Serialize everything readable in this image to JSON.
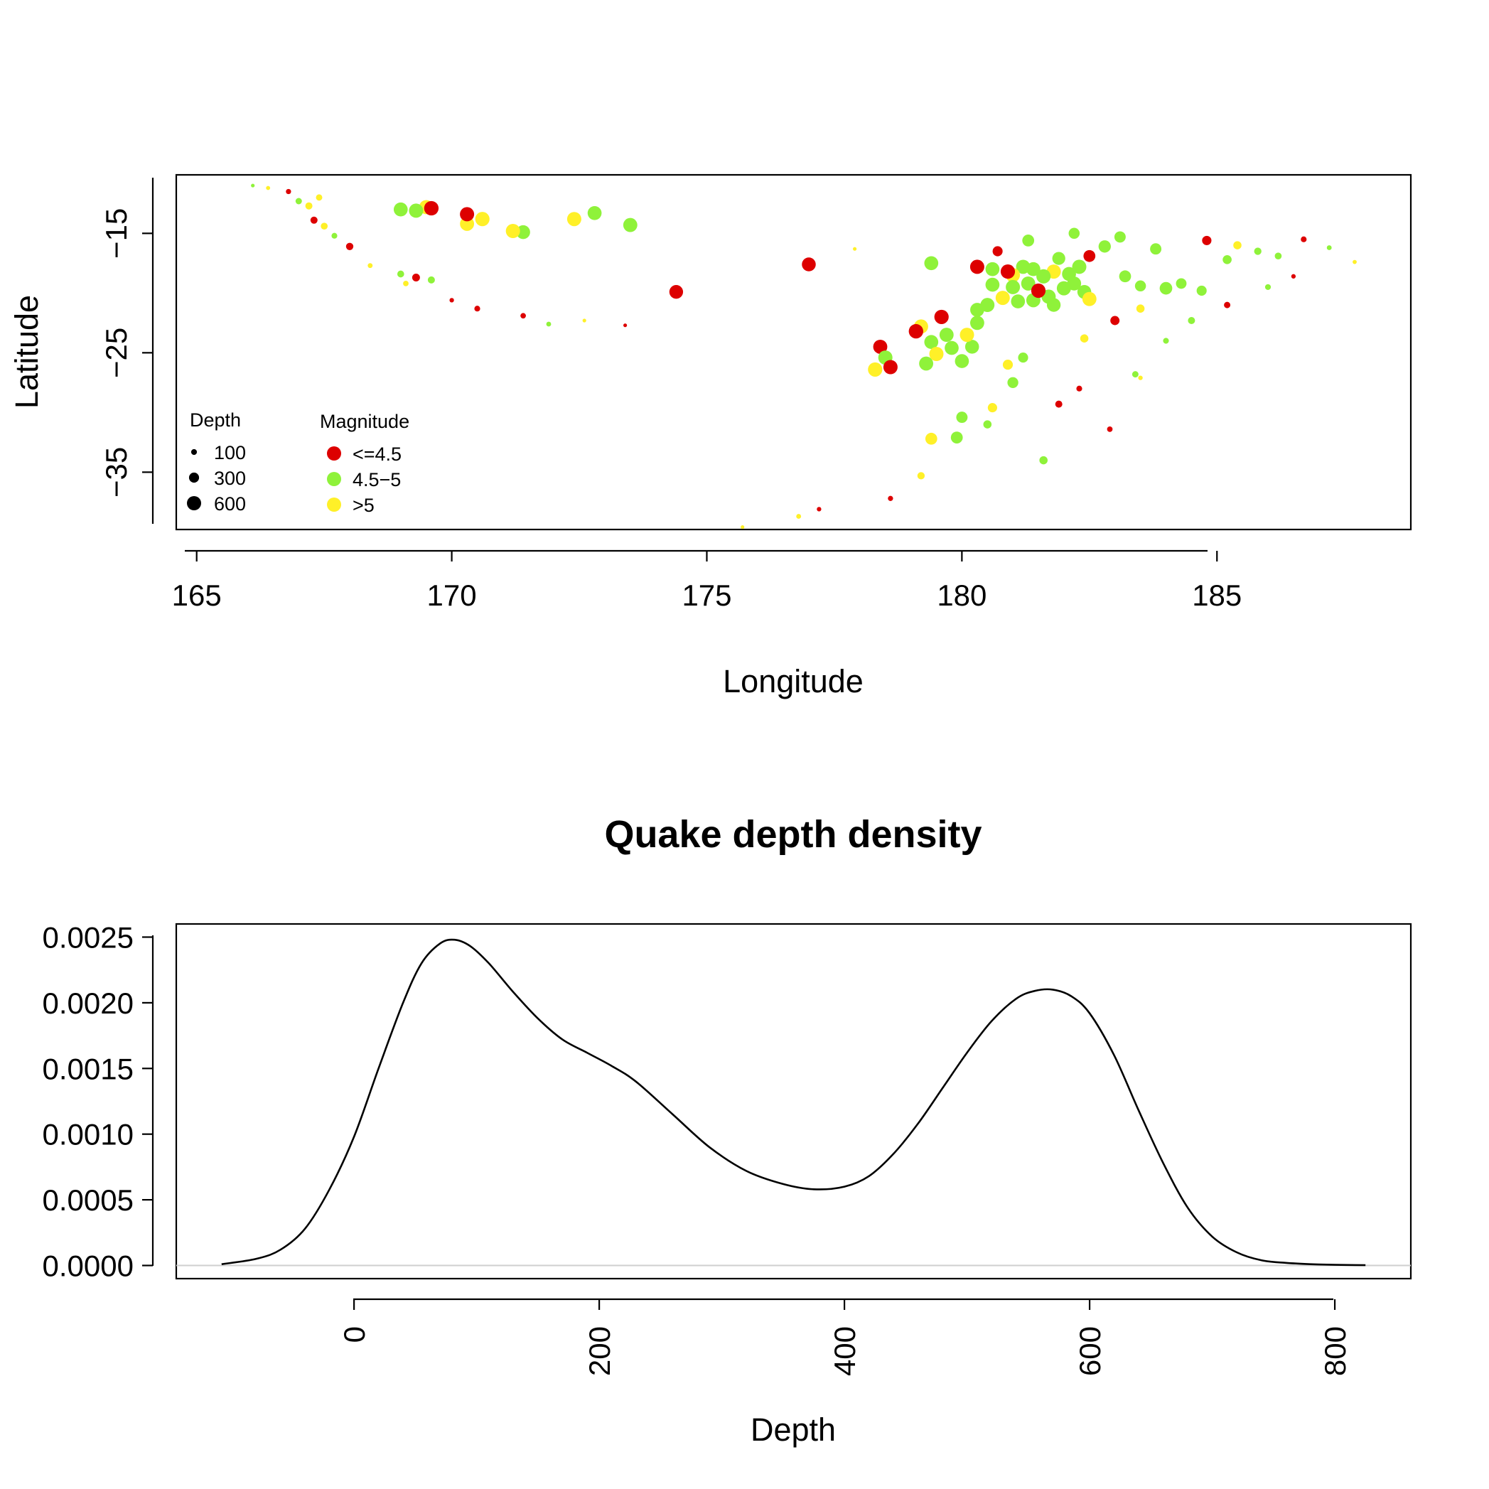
{
  "colors": {
    "low": "#dd0000",
    "mid": "#8ff23a",
    "high": "#fff028",
    "axis": "#000000",
    "zero_line": "#cfcfcf"
  },
  "chart_data": [
    {
      "type": "scatter",
      "title": "",
      "xlabel": "Longitude",
      "ylabel": "Latitude",
      "xlim": [
        164.6,
        188.8
      ],
      "ylim": [
        -39.8,
        -10.1
      ],
      "xticks": [
        165,
        170,
        175,
        180,
        185
      ],
      "xtick_labels": [
        "165",
        "170",
        "175",
        "180",
        "185"
      ],
      "yticks": [
        -15,
        -25,
        -35
      ],
      "ytick_labels": [
        "−15",
        "−25",
        "−35"
      ],
      "grid": false,
      "legend": {
        "placement": "bottom-left",
        "size_title": "Depth",
        "size_entries": [
          {
            "label": "100",
            "depth": 100
          },
          {
            "label": "300",
            "depth": 300
          },
          {
            "label": "600",
            "depth": 600
          }
        ],
        "color_title": "Magnitude",
        "color_entries": [
          {
            "label": "<=4.5",
            "class": "low"
          },
          {
            "label": "4.5−5",
            "class": "mid"
          },
          {
            "label": ">5",
            "class": "high"
          }
        ]
      },
      "size_encodes": "depth",
      "color_encodes": "magnitude",
      "points": [
        {
          "x": 169.0,
          "y": -13.0,
          "depth": 580,
          "mag": "mid"
        },
        {
          "x": 169.3,
          "y": -13.1,
          "depth": 600,
          "mag": "mid"
        },
        {
          "x": 169.5,
          "y": -12.8,
          "depth": 590,
          "mag": "high"
        },
        {
          "x": 169.6,
          "y": -12.9,
          "depth": 620,
          "mag": "low"
        },
        {
          "x": 170.3,
          "y": -13.4,
          "depth": 600,
          "mag": "low"
        },
        {
          "x": 170.3,
          "y": -14.2,
          "depth": 590,
          "mag": "high"
        },
        {
          "x": 170.6,
          "y": -13.8,
          "depth": 610,
          "mag": "high"
        },
        {
          "x": 171.2,
          "y": -14.8,
          "depth": 600,
          "mag": "high"
        },
        {
          "x": 171.4,
          "y": -14.9,
          "depth": 570,
          "mag": "mid"
        },
        {
          "x": 172.4,
          "y": -13.8,
          "depth": 600,
          "mag": "high"
        },
        {
          "x": 172.8,
          "y": -13.3,
          "depth": 580,
          "mag": "mid"
        },
        {
          "x": 173.5,
          "y": -14.3,
          "depth": 590,
          "mag": "mid"
        },
        {
          "x": 174.4,
          "y": -19.9,
          "depth": 560,
          "mag": "low"
        },
        {
          "x": 177.0,
          "y": -17.6,
          "depth": 570,
          "mag": "low"
        },
        {
          "x": 178.4,
          "y": -24.5,
          "depth": 590,
          "mag": "low"
        },
        {
          "x": 178.5,
          "y": -25.4,
          "depth": 600,
          "mag": "mid"
        },
        {
          "x": 178.3,
          "y": -26.4,
          "depth": 610,
          "mag": "high"
        },
        {
          "x": 178.6,
          "y": -26.2,
          "depth": 600,
          "mag": "low"
        },
        {
          "x": 179.1,
          "y": -23.2,
          "depth": 620,
          "mag": "low"
        },
        {
          "x": 179.2,
          "y": -22.8,
          "depth": 600,
          "mag": "high"
        },
        {
          "x": 179.4,
          "y": -24.1,
          "depth": 580,
          "mag": "mid"
        },
        {
          "x": 179.6,
          "y": -22.0,
          "depth": 610,
          "mag": "low"
        },
        {
          "x": 179.7,
          "y": -23.5,
          "depth": 590,
          "mag": "mid"
        },
        {
          "x": 179.8,
          "y": -24.6,
          "depth": 580,
          "mag": "mid"
        },
        {
          "x": 179.5,
          "y": -25.1,
          "depth": 600,
          "mag": "high"
        },
        {
          "x": 179.3,
          "y": -25.9,
          "depth": 590,
          "mag": "mid"
        },
        {
          "x": 180.1,
          "y": -23.5,
          "depth": 600,
          "mag": "high"
        },
        {
          "x": 180.2,
          "y": -24.5,
          "depth": 570,
          "mag": "mid"
        },
        {
          "x": 180.0,
          "y": -25.7,
          "depth": 580,
          "mag": "mid"
        },
        {
          "x": 180.3,
          "y": -22.5,
          "depth": 590,
          "mag": "mid"
        },
        {
          "x": 179.4,
          "y": -17.5,
          "depth": 580,
          "mag": "mid"
        },
        {
          "x": 180.3,
          "y": -17.8,
          "depth": 600,
          "mag": "low"
        },
        {
          "x": 180.7,
          "y": -16.5,
          "depth": 300,
          "mag": "low"
        },
        {
          "x": 180.6,
          "y": -18.0,
          "depth": 580,
          "mag": "mid"
        },
        {
          "x": 180.9,
          "y": -18.2,
          "depth": 610,
          "mag": "low"
        },
        {
          "x": 181.0,
          "y": -18.5,
          "depth": 600,
          "mag": "high"
        },
        {
          "x": 181.2,
          "y": -17.8,
          "depth": 590,
          "mag": "mid"
        },
        {
          "x": 181.4,
          "y": -18.0,
          "depth": 580,
          "mag": "mid"
        },
        {
          "x": 181.6,
          "y": -18.6,
          "depth": 610,
          "mag": "mid"
        },
        {
          "x": 181.8,
          "y": -18.2,
          "depth": 600,
          "mag": "high"
        },
        {
          "x": 181.3,
          "y": -19.2,
          "depth": 590,
          "mag": "mid"
        },
        {
          "x": 181.0,
          "y": -19.5,
          "depth": 600,
          "mag": "mid"
        },
        {
          "x": 180.6,
          "y": -19.3,
          "depth": 580,
          "mag": "mid"
        },
        {
          "x": 181.5,
          "y": -19.8,
          "depth": 610,
          "mag": "low"
        },
        {
          "x": 181.7,
          "y": -20.3,
          "depth": 600,
          "mag": "mid"
        },
        {
          "x": 181.4,
          "y": -20.6,
          "depth": 590,
          "mag": "mid"
        },
        {
          "x": 181.1,
          "y": -20.7,
          "depth": 580,
          "mag": "mid"
        },
        {
          "x": 180.8,
          "y": -20.4,
          "depth": 600,
          "mag": "high"
        },
        {
          "x": 180.5,
          "y": -21.0,
          "depth": 590,
          "mag": "mid"
        },
        {
          "x": 180.3,
          "y": -21.4,
          "depth": 580,
          "mag": "mid"
        },
        {
          "x": 182.0,
          "y": -19.6,
          "depth": 600,
          "mag": "mid"
        },
        {
          "x": 182.2,
          "y": -19.2,
          "depth": 580,
          "mag": "mid"
        },
        {
          "x": 182.4,
          "y": -19.9,
          "depth": 570,
          "mag": "mid"
        },
        {
          "x": 182.5,
          "y": -20.5,
          "depth": 590,
          "mag": "high"
        },
        {
          "x": 182.1,
          "y": -18.4,
          "depth": 580,
          "mag": "mid"
        },
        {
          "x": 182.3,
          "y": -17.8,
          "depth": 600,
          "mag": "mid"
        },
        {
          "x": 181.8,
          "y": -21.0,
          "depth": 560,
          "mag": "mid"
        },
        {
          "x": 181.9,
          "y": -17.1,
          "depth": 500,
          "mag": "mid"
        },
        {
          "x": 181.3,
          "y": -15.6,
          "depth": 420,
          "mag": "mid"
        },
        {
          "x": 182.5,
          "y": -16.9,
          "depth": 420,
          "mag": "low"
        },
        {
          "x": 182.8,
          "y": -16.1,
          "depth": 450,
          "mag": "mid"
        },
        {
          "x": 183.1,
          "y": -15.3,
          "depth": 380,
          "mag": "mid"
        },
        {
          "x": 182.2,
          "y": -15.0,
          "depth": 360,
          "mag": "mid"
        },
        {
          "x": 183.2,
          "y": -18.6,
          "depth": 420,
          "mag": "mid"
        },
        {
          "x": 183.5,
          "y": -19.4,
          "depth": 360,
          "mag": "mid"
        },
        {
          "x": 183.8,
          "y": -16.3,
          "depth": 380,
          "mag": "mid"
        },
        {
          "x": 184.0,
          "y": -19.6,
          "depth": 470,
          "mag": "mid"
        },
        {
          "x": 184.3,
          "y": -19.2,
          "depth": 330,
          "mag": "mid"
        },
        {
          "x": 184.7,
          "y": -19.8,
          "depth": 300,
          "mag": "mid"
        },
        {
          "x": 184.8,
          "y": -15.6,
          "depth": 260,
          "mag": "low"
        },
        {
          "x": 185.2,
          "y": -17.2,
          "depth": 240,
          "mag": "mid"
        },
        {
          "x": 185.4,
          "y": -16.0,
          "depth": 200,
          "mag": "high"
        },
        {
          "x": 185.8,
          "y": -16.5,
          "depth": 160,
          "mag": "mid"
        },
        {
          "x": 186.2,
          "y": -16.9,
          "depth": 140,
          "mag": "mid"
        },
        {
          "x": 186.7,
          "y": -15.5,
          "depth": 100,
          "mag": "low"
        },
        {
          "x": 187.2,
          "y": -16.2,
          "depth": 70,
          "mag": "mid"
        },
        {
          "x": 187.7,
          "y": -17.4,
          "depth": 50,
          "mag": "high"
        },
        {
          "x": 183.0,
          "y": -22.3,
          "depth": 250,
          "mag": "low"
        },
        {
          "x": 182.4,
          "y": -23.8,
          "depth": 200,
          "mag": "high"
        },
        {
          "x": 181.2,
          "y": -25.4,
          "depth": 300,
          "mag": "mid"
        },
        {
          "x": 180.9,
          "y": -26.0,
          "depth": 300,
          "mag": "high"
        },
        {
          "x": 181.0,
          "y": -27.5,
          "depth": 350,
          "mag": "mid"
        },
        {
          "x": 180.6,
          "y": -29.6,
          "depth": 260,
          "mag": "high"
        },
        {
          "x": 180.5,
          "y": -31.0,
          "depth": 200,
          "mag": "mid"
        },
        {
          "x": 180.0,
          "y": -30.4,
          "depth": 380,
          "mag": "mid"
        },
        {
          "x": 179.9,
          "y": -32.1,
          "depth": 420,
          "mag": "mid"
        },
        {
          "x": 179.4,
          "y": -32.2,
          "depth": 420,
          "mag": "high"
        },
        {
          "x": 181.6,
          "y": -34.0,
          "depth": 200,
          "mag": "mid"
        },
        {
          "x": 181.9,
          "y": -29.3,
          "depth": 150,
          "mag": "low"
        },
        {
          "x": 182.3,
          "y": -28.0,
          "depth": 100,
          "mag": "low"
        },
        {
          "x": 183.4,
          "y": -26.8,
          "depth": 120,
          "mag": "mid"
        },
        {
          "x": 184.0,
          "y": -24.0,
          "depth": 100,
          "mag": "mid"
        },
        {
          "x": 179.2,
          "y": -35.3,
          "depth": 160,
          "mag": "high"
        },
        {
          "x": 178.6,
          "y": -37.2,
          "depth": 80,
          "mag": "low"
        },
        {
          "x": 177.2,
          "y": -38.1,
          "depth": 60,
          "mag": "low"
        },
        {
          "x": 176.8,
          "y": -38.7,
          "depth": 70,
          "mag": "high"
        },
        {
          "x": 175.7,
          "y": -39.6,
          "depth": 40,
          "mag": "high"
        },
        {
          "x": 166.1,
          "y": -11.0,
          "depth": 40,
          "mag": "mid"
        },
        {
          "x": 166.4,
          "y": -11.2,
          "depth": 50,
          "mag": "high"
        },
        {
          "x": 166.8,
          "y": -11.5,
          "depth": 80,
          "mag": "low"
        },
        {
          "x": 167.0,
          "y": -12.3,
          "depth": 120,
          "mag": "mid"
        },
        {
          "x": 167.2,
          "y": -12.7,
          "depth": 150,
          "mag": "high"
        },
        {
          "x": 167.4,
          "y": -12.0,
          "depth": 120,
          "mag": "high"
        },
        {
          "x": 167.3,
          "y": -13.9,
          "depth": 150,
          "mag": "low"
        },
        {
          "x": 167.5,
          "y": -14.4,
          "depth": 140,
          "mag": "high"
        },
        {
          "x": 167.7,
          "y": -15.2,
          "depth": 100,
          "mag": "mid"
        },
        {
          "x": 168.0,
          "y": -16.1,
          "depth": 160,
          "mag": "low"
        },
        {
          "x": 168.4,
          "y": -17.7,
          "depth": 70,
          "mag": "high"
        },
        {
          "x": 169.0,
          "y": -18.4,
          "depth": 140,
          "mag": "mid"
        },
        {
          "x": 169.3,
          "y": -18.7,
          "depth": 180,
          "mag": "low"
        },
        {
          "x": 169.6,
          "y": -18.9,
          "depth": 150,
          "mag": "mid"
        },
        {
          "x": 169.1,
          "y": -19.2,
          "depth": 90,
          "mag": "high"
        },
        {
          "x": 170.0,
          "y": -20.6,
          "depth": 60,
          "mag": "low"
        },
        {
          "x": 170.5,
          "y": -21.3,
          "depth": 100,
          "mag": "low"
        },
        {
          "x": 171.4,
          "y": -21.9,
          "depth": 90,
          "mag": "low"
        },
        {
          "x": 171.9,
          "y": -22.6,
          "depth": 70,
          "mag": "mid"
        },
        {
          "x": 172.6,
          "y": -22.3,
          "depth": 40,
          "mag": "high"
        },
        {
          "x": 173.4,
          "y": -22.7,
          "depth": 40,
          "mag": "low"
        },
        {
          "x": 177.9,
          "y": -16.3,
          "depth": 40,
          "mag": "high"
        },
        {
          "x": 183.5,
          "y": -21.3,
          "depth": 200,
          "mag": "high"
        },
        {
          "x": 184.5,
          "y": -22.3,
          "depth": 150,
          "mag": "mid"
        },
        {
          "x": 185.2,
          "y": -21.0,
          "depth": 120,
          "mag": "low"
        },
        {
          "x": 186.0,
          "y": -19.5,
          "depth": 100,
          "mag": "mid"
        },
        {
          "x": 186.5,
          "y": -18.6,
          "depth": 60,
          "mag": "low"
        },
        {
          "x": 182.9,
          "y": -31.4,
          "depth": 90,
          "mag": "low"
        },
        {
          "x": 183.5,
          "y": -27.1,
          "depth": 60,
          "mag": "high"
        }
      ]
    },
    {
      "type": "line",
      "title": "Quake depth density",
      "xlabel": "Depth",
      "ylabel": "",
      "xlim": [
        -145,
        862
      ],
      "ylim": [
        -0.0001,
        0.0026
      ],
      "xticks": [
        0,
        200,
        400,
        600,
        800
      ],
      "xtick_labels": [
        "0",
        "200",
        "400",
        "600",
        "800"
      ],
      "yticks": [
        0.0,
        0.0005,
        0.001,
        0.0015,
        0.002,
        0.0025
      ],
      "ytick_labels": [
        "0.0000",
        "0.0005",
        "0.0010",
        "0.0015",
        "0.0020",
        "0.0025"
      ],
      "grid": false,
      "series": [
        {
          "x": [
            -108,
            -80,
            -60,
            -40,
            -20,
            0,
            20,
            40,
            55,
            70,
            82,
            95,
            110,
            130,
            150,
            170,
            190,
            210,
            230,
            260,
            290,
            320,
            350,
            375,
            400,
            420,
            440,
            460,
            480,
            500,
            520,
            540,
            555,
            570,
            585,
            600,
            620,
            640,
            660,
            680,
            700,
            720,
            740,
            760,
            780,
            800,
            825
          ],
          "y": [
            1e-05,
            5e-05,
            0.00012,
            0.00028,
            0.00058,
            0.00098,
            0.0015,
            0.002,
            0.0023,
            0.00245,
            0.00248,
            0.00243,
            0.0023,
            0.00208,
            0.00188,
            0.00172,
            0.00162,
            0.00152,
            0.0014,
            0.00115,
            0.0009,
            0.00072,
            0.00062,
            0.00058,
            0.0006,
            0.00068,
            0.00085,
            0.00108,
            0.00135,
            0.00162,
            0.00186,
            0.00203,
            0.00209,
            0.0021,
            0.00205,
            0.00192,
            0.0016,
            0.00118,
            0.00078,
            0.00044,
            0.00022,
            0.0001,
            4e-05,
            2e-05,
            1e-05,
            5e-06,
            2e-06
          ]
        }
      ]
    }
  ]
}
